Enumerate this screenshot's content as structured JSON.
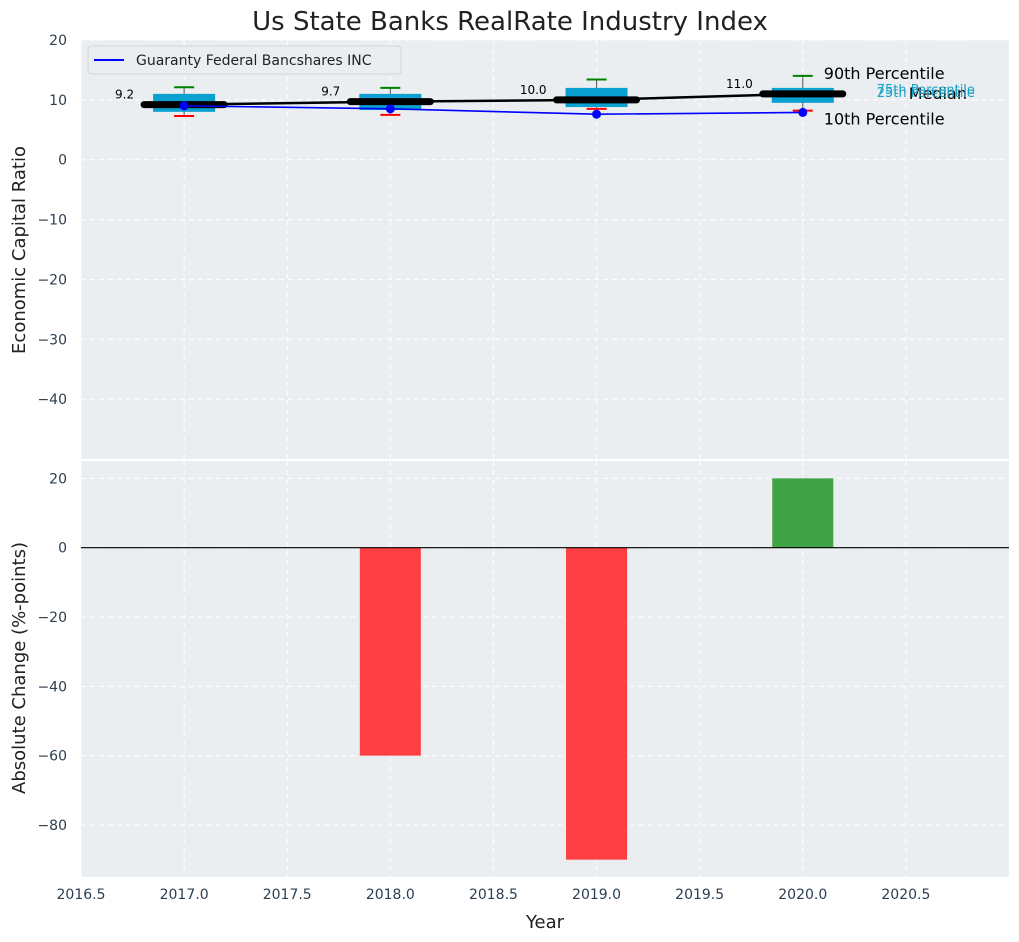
{
  "chart_data": [
    {
      "type": "box+line",
      "title": "Us State Banks RealRate Industry Index",
      "ylabel": "Economic Capital Ratio",
      "xlim": [
        2016.5,
        2021.0
      ],
      "ylim": [
        -50,
        20
      ],
      "yticks": [
        20,
        10,
        0,
        -10,
        -20,
        -30,
        -40
      ],
      "legend": {
        "position": "top-left",
        "entries": [
          "Guaranty Federal Bancshares INC"
        ]
      },
      "colors": {
        "box": "#0aa0cf",
        "line": "#0000ff",
        "median": "#000000",
        "p90": "#008000",
        "p10": "#ff0000",
        "background": "#eaeef0"
      },
      "boxes": [
        {
          "year": 2017,
          "p10": 7.3,
          "q1": 8.0,
          "median": 9.2,
          "q3": 11.0,
          "p90": 12.1,
          "median_label": "9.2"
        },
        {
          "year": 2018,
          "p10": 7.5,
          "q1": 8.3,
          "median": 9.7,
          "q3": 11.0,
          "p90": 12.0,
          "median_label": "9.7"
        },
        {
          "year": 2019,
          "p10": 8.5,
          "q1": 8.8,
          "median": 10.0,
          "q3": 12.0,
          "p90": 13.4,
          "median_label": "10.0"
        },
        {
          "year": 2020,
          "p10": 8.2,
          "q1": 9.5,
          "median": 11.0,
          "q3": 12.0,
          "p90": 14.0,
          "median_label": "11.0"
        }
      ],
      "series": [
        {
          "name": "Guaranty Federal Bancshares INC",
          "x": [
            2017,
            2018,
            2019,
            2020
          ],
          "values": [
            9.0,
            8.5,
            7.6,
            7.9
          ]
        },
        {
          "name": "Median",
          "x": [
            2017,
            2018,
            2019,
            2020
          ],
          "values": [
            9.2,
            9.7,
            10.0,
            11.0
          ]
        }
      ],
      "annotations": {
        "p90": "90th Percentile",
        "median": "Median",
        "p10": "10th Percentile",
        "q3": "75th Percentile",
        "q1": "25th Percentile"
      }
    },
    {
      "type": "bar",
      "xlabel": "Year",
      "ylabel": "Absolute Change (%-points)",
      "xlim": [
        2016.5,
        2021.0
      ],
      "ylim": [
        -95,
        25
      ],
      "yticks": [
        20,
        0,
        -20,
        -40,
        -60,
        -80
      ],
      "xticks": [
        "2016.5",
        "2017.0",
        "2017.5",
        "2018.0",
        "2018.5",
        "2019.0",
        "2019.5",
        "2020.0",
        "2020.5"
      ],
      "categories": [
        2017,
        2018,
        2019,
        2020
      ],
      "values": [
        0,
        -60,
        -90,
        20
      ],
      "colors": {
        "positive": "#2e9a33",
        "negative": "#ff2a2f"
      }
    }
  ]
}
